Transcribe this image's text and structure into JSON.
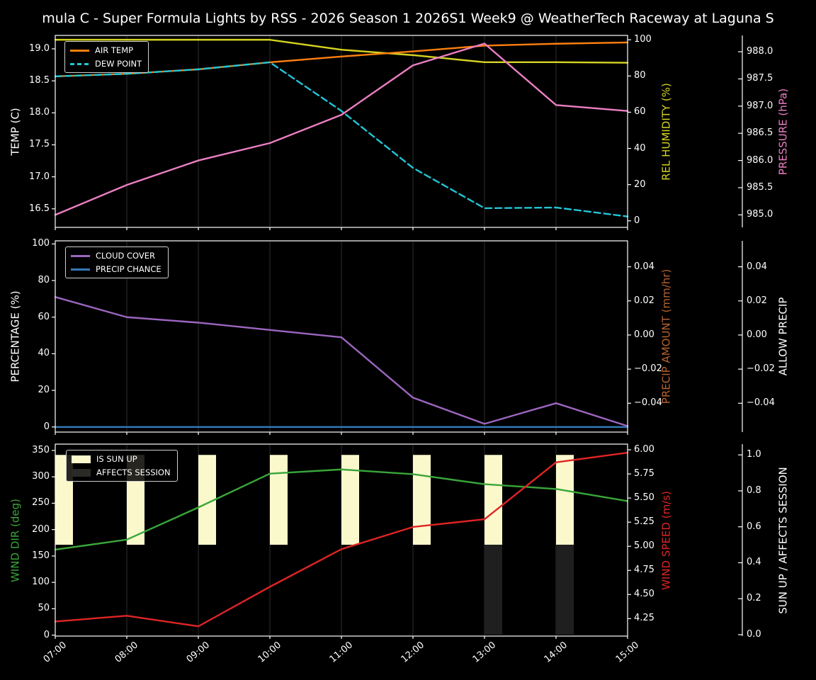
{
  "title": "mula C - Super Formula Lights by RSS - 2026 Season 1 2026S1 Week9 @ WeatherTech Raceway at Laguna S",
  "colors": {
    "background": "#000000",
    "spine": "#ffffff",
    "gridline": "#2e2e2e",
    "air_temp": "#ff800e",
    "dew_point": "#22c5d6",
    "rel_humidity": "#d5d422",
    "pressure": "#ec7fc3",
    "cloud_cover": "#9b66bf",
    "precip_chance": "#3579b8",
    "precip_amount": "#b5632e",
    "wind_dir": "#39a639",
    "wind_speed": "#e02424",
    "sun_up_bar": "#fbf8cc",
    "affects_session_bar": "#1f1f1f"
  },
  "chart_data": [
    {
      "type": "line",
      "x": [
        "07:00",
        "08:00",
        "09:00",
        "10:00",
        "11:00",
        "12:00",
        "13:00",
        "14:00",
        "15:00"
      ],
      "axes": {
        "left": {
          "label": "TEMP (C)",
          "color": "#ffffff",
          "decimals": 1,
          "ticks": [
            16.5,
            17.0,
            17.5,
            18.0,
            18.5,
            19.0
          ],
          "range": [
            16.21,
            19.21
          ]
        },
        "right1": {
          "label": "REL HUMIDITY (%)",
          "color": "#d5d422",
          "decimals": 0,
          "ticks": [
            0,
            20,
            40,
            60,
            80,
            100
          ],
          "range": [
            -3.6,
            102.4
          ]
        },
        "right2": {
          "label": "PRESSURE (hPa)",
          "color": "#ec7fc3",
          "decimals": 1,
          "ticks": [
            985.0,
            985.5,
            986.0,
            986.5,
            987.0,
            987.5,
            988.0
          ],
          "range": [
            984.77,
            988.3
          ]
        }
      },
      "series": [
        {
          "name": "REL HUMIDITY",
          "axis": "right1",
          "color": "#d5d422",
          "dashed": false,
          "values": [
            100,
            100,
            100,
            100,
            94.5,
            91.5,
            87.6,
            87.6,
            87.3
          ]
        },
        {
          "name": "AIR TEMP",
          "axis": "left",
          "color": "#ff800e",
          "dashed": false,
          "values": [
            18.57,
            18.61,
            18.68,
            18.79,
            18.88,
            18.96,
            19.05,
            19.08,
            19.1
          ]
        },
        {
          "name": "DEW POINT",
          "axis": "left",
          "color": "#22c5d6",
          "dashed": true,
          "values": [
            18.57,
            18.61,
            18.68,
            18.79,
            18.03,
            17.14,
            16.51,
            16.52,
            16.38
          ]
        },
        {
          "name": "PRESSURE",
          "axis": "right2",
          "color": "#ec7fc3",
          "dashed": false,
          "values": [
            985.0,
            985.55,
            986.0,
            986.32,
            986.84,
            987.75,
            988.15,
            987.02,
            986.91
          ]
        }
      ],
      "legend": {
        "swatch": "line",
        "entries": [
          {
            "label": "AIR TEMP",
            "color": "#ff800e",
            "dashed": false
          },
          {
            "label": "DEW POINT",
            "color": "#22c5d6",
            "dashed": true
          }
        ]
      }
    },
    {
      "type": "line",
      "x": [
        "07:00",
        "08:00",
        "09:00",
        "10:00",
        "11:00",
        "12:00",
        "13:00",
        "14:00",
        "15:00"
      ],
      "axes": {
        "left": {
          "label": "PERCENTAGE (%)",
          "color": "#ffffff",
          "decimals": 0,
          "ticks": [
            0,
            20,
            40,
            60,
            80,
            100
          ],
          "range": [
            -2.8,
            101.7
          ]
        },
        "right1": {
          "label": "PRECIP AMOUNT (mm/hr)",
          "color": "#b5632e",
          "decimals": 2,
          "ticks": [
            0.04,
            0.02,
            0.0,
            -0.02,
            -0.04
          ],
          "range": [
            -0.0569,
            0.0552
          ]
        },
        "right2": {
          "label": "ALLOW PRECIP",
          "color": "#ffffff",
          "decimals": 2,
          "ticks": [
            0.04,
            0.02,
            0.0,
            -0.02,
            -0.04
          ],
          "range": [
            -0.0569,
            0.0552
          ]
        }
      },
      "series": [
        {
          "name": "CLOUD COVER",
          "axis": "left",
          "color": "#9b66bf",
          "dashed": false,
          "values": [
            71,
            60,
            57,
            53,
            49,
            16,
            1.7,
            13,
            0.5
          ]
        },
        {
          "name": "PRECIP CHANCE",
          "axis": "left",
          "color": "#3579b8",
          "dashed": false,
          "values": [
            0,
            0,
            0,
            0,
            0,
            0,
            0,
            0,
            0
          ]
        }
      ],
      "legend": {
        "swatch": "line",
        "entries": [
          {
            "label": "CLOUD COVER",
            "color": "#9b66bf",
            "dashed": false
          },
          {
            "label": "PRECIP CHANCE",
            "color": "#3579b8",
            "dashed": false
          }
        ]
      }
    },
    {
      "type": "line",
      "x": [
        "07:00",
        "08:00",
        "09:00",
        "10:00",
        "11:00",
        "12:00",
        "13:00",
        "14:00",
        "15:00"
      ],
      "axes": {
        "left": {
          "label": "WIND DIR (deg)",
          "color": "#39a639",
          "decimals": 0,
          "ticks": [
            0,
            50,
            100,
            150,
            200,
            250,
            300,
            350
          ],
          "range": [
            -1.8,
            362
          ]
        },
        "right1": {
          "label": "WIND SPEED (m/s)",
          "color": "#e02424",
          "decimals": 2,
          "ticks": [
            4.25,
            4.5,
            4.75,
            5.0,
            5.25,
            5.5,
            5.75,
            6.0
          ],
          "range": [
            4.069,
            6.059
          ]
        },
        "right2": {
          "label": "SUN UP / AFFECTS SESSION",
          "color": "#ffffff",
          "decimals": 1,
          "ticks": [
            0.0,
            0.2,
            0.4,
            0.6,
            0.8,
            1.0
          ],
          "range": [
            -0.008,
            1.06
          ]
        }
      },
      "bars": [
        {
          "name": "IS SUN UP",
          "axis": "right2",
          "color": "#fbf8cc",
          "from": 0.5,
          "to": 1.0,
          "at": [
            0,
            1,
            2,
            3,
            4,
            5,
            6,
            7
          ]
        },
        {
          "name": "AFFECTS SESSION",
          "axis": "right2",
          "color": "#1f1f1f",
          "from": 0.0,
          "to": 0.5,
          "at": [
            6,
            7
          ]
        }
      ],
      "series": [
        {
          "name": "WIND DIR",
          "axis": "left",
          "color": "#39a639",
          "dashed": false,
          "values": [
            162,
            181,
            242,
            306,
            314,
            305,
            286,
            277,
            254
          ]
        },
        {
          "name": "WIND SPEED",
          "axis": "right1",
          "color": "#e02424",
          "dashed": false,
          "values": [
            4.22,
            4.28,
            4.17,
            4.58,
            4.97,
            5.2,
            5.28,
            5.87,
            5.97
          ]
        }
      ],
      "legend": {
        "swatch": "rect",
        "entries": [
          {
            "label": "IS SUN UP",
            "color": "#fbf8cc"
          },
          {
            "label": "AFFECTS SESSION",
            "color": "#2b2b26"
          }
        ]
      }
    }
  ]
}
